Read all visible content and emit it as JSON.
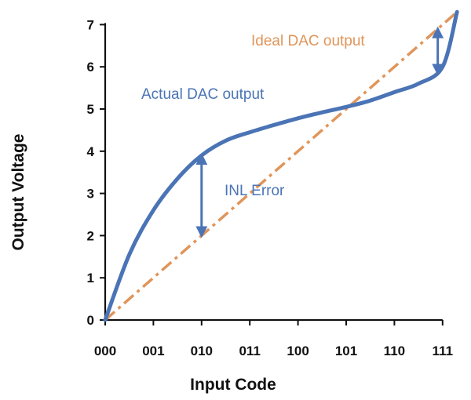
{
  "chart_data": {
    "type": "line",
    "title": "",
    "xlabel": "Input Code",
    "ylabel": "Output Voltage",
    "categories": [
      "000",
      "001",
      "010",
      "011",
      "100",
      "101",
      "110",
      "111"
    ],
    "yticks": [
      "0",
      "1",
      "2",
      "3",
      "4",
      "5",
      "6",
      "7"
    ],
    "ylim": [
      0,
      7
    ],
    "grid": false,
    "colors": {
      "actual": "#4a74b5",
      "ideal": "#e0955a",
      "error_arrow": "#4a74b5",
      "axis": "#111111"
    },
    "series": [
      {
        "name": "Actual DAC output",
        "style": "solid",
        "x": [
          0,
          0.5,
          1,
          1.5,
          2,
          2.5,
          3,
          3.5,
          4,
          4.5,
          5,
          5.5,
          6,
          6.5,
          7,
          7.3
        ],
        "y": [
          0,
          1.55,
          2.6,
          3.35,
          3.9,
          4.25,
          4.45,
          4.62,
          4.78,
          4.92,
          5.05,
          5.2,
          5.4,
          5.6,
          6.0,
          7.3
        ]
      },
      {
        "name": "Ideal DAC output",
        "style": "dash-dot",
        "x": [
          0,
          7.3
        ],
        "y": [
          0,
          7.3
        ]
      }
    ],
    "annotations": [
      {
        "text": "Ideal DAC output",
        "color": "#e0955a"
      },
      {
        "text": "Actual DAC output",
        "color": "#4a74b5"
      },
      {
        "text": "INL Error",
        "color": "#4a74b5"
      }
    ],
    "error_arrows": [
      {
        "x": 2,
        "y_from": 2.0,
        "y_to": 3.9
      },
      {
        "x": 6.9,
        "y_from": 5.85,
        "y_to": 6.9
      }
    ]
  }
}
